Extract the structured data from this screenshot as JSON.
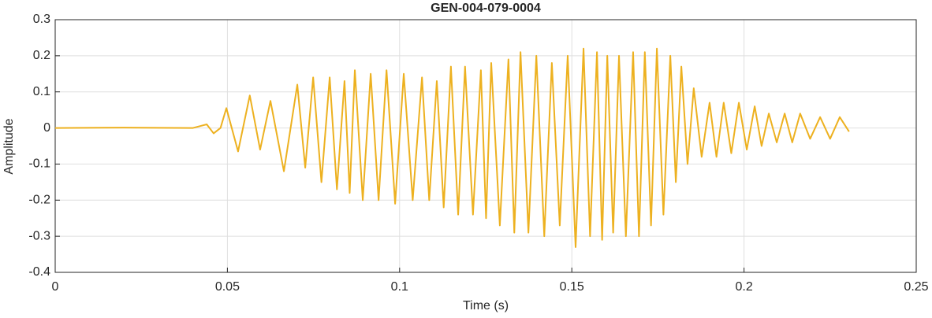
{
  "chart_data": {
    "type": "line",
    "title": "GEN-004-079-0004",
    "x_label": "Time (s)",
    "y_label": "Amplitude",
    "xlim": [
      0,
      0.25
    ],
    "xticks": [
      0,
      0.05,
      0.1,
      0.15,
      0.2,
      0.25
    ],
    "ylim": [
      -0.4,
      0.3
    ],
    "yticks": [
      -0.4,
      -0.3,
      -0.2,
      -0.1,
      0,
      0.1,
      0.2,
      0.3
    ],
    "grid": true,
    "series": [
      {
        "color": "#EDB120",
        "x": [
          0,
          0.02,
          0.04,
          0.044,
          0.046,
          0.048,
          0.0497,
          0.0531,
          0.0565,
          0.0595,
          0.0625,
          0.0664,
          0.0703,
          0.0726,
          0.0749,
          0.0773,
          0.0797,
          0.0818,
          0.084,
          0.0855,
          0.087,
          0.0893,
          0.0916,
          0.0939,
          0.0962,
          0.0987,
          0.1012,
          0.1038,
          0.1065,
          0.1086,
          0.1108,
          0.1128,
          0.1149,
          0.117,
          0.119,
          0.1213,
          0.1236,
          0.1251,
          0.1266,
          0.1291,
          0.1316,
          0.1333,
          0.1351,
          0.1374,
          0.1397,
          0.142,
          0.1442,
          0.1465,
          0.1488,
          0.1511,
          0.1534,
          0.1553,
          0.1573,
          0.1588,
          0.1603,
          0.162,
          0.1637,
          0.1657,
          0.1678,
          0.1695,
          0.1712,
          0.173,
          0.1747,
          0.1766,
          0.1786,
          0.1802,
          0.1818,
          0.1836,
          0.1854,
          0.1877,
          0.19,
          0.192,
          0.1941,
          0.1963,
          0.1985,
          0.2008,
          0.2031,
          0.2051,
          0.2072,
          0.2095,
          0.2118,
          0.214,
          0.2163,
          0.2192,
          0.2221,
          0.225,
          0.2278,
          0.2305
        ],
        "values": [
          0,
          0.001,
          0,
          0.01,
          -0.015,
          0,
          0.055,
          -0.065,
          0.09,
          -0.06,
          0.075,
          -0.12,
          0.12,
          -0.11,
          0.14,
          -0.15,
          0.14,
          -0.17,
          0.13,
          -0.18,
          0.16,
          -0.2,
          0.15,
          -0.2,
          0.16,
          -0.21,
          0.15,
          -0.2,
          0.14,
          -0.2,
          0.13,
          -0.22,
          0.17,
          -0.24,
          0.17,
          -0.24,
          0.16,
          -0.25,
          0.18,
          -0.27,
          0.19,
          -0.29,
          0.21,
          -0.29,
          0.2,
          -0.3,
          0.18,
          -0.27,
          0.2,
          -0.33,
          0.22,
          -0.3,
          0.21,
          -0.31,
          0.2,
          -0.29,
          0.2,
          -0.3,
          0.21,
          -0.3,
          0.21,
          -0.27,
          0.22,
          -0.24,
          0.2,
          -0.15,
          0.17,
          -0.1,
          0.11,
          -0.08,
          0.07,
          -0.08,
          0.07,
          -0.07,
          0.07,
          -0.06,
          0.06,
          -0.05,
          0.04,
          -0.04,
          0.04,
          -0.04,
          0.04,
          -0.03,
          0.03,
          -0.03,
          0.03,
          -0.01
        ]
      }
    ]
  }
}
